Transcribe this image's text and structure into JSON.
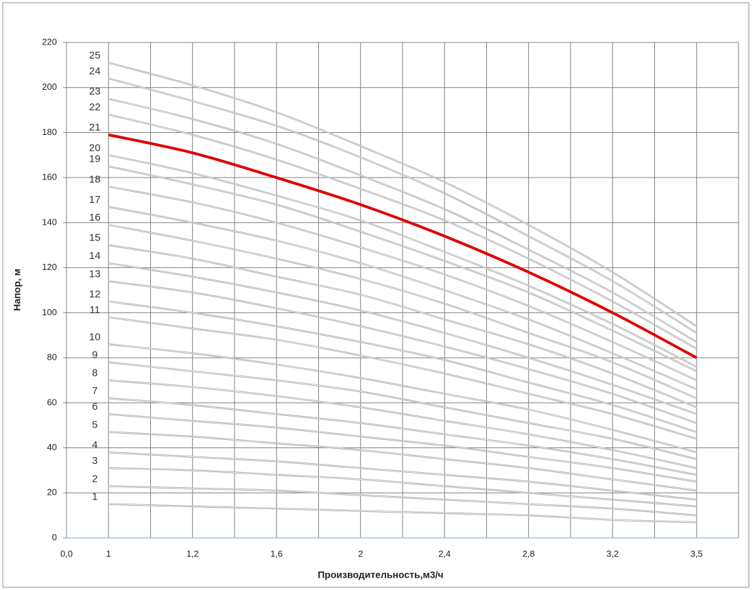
{
  "chart_data": {
    "type": "line",
    "x_label": "Производительность,м3/ч",
    "y_label": "Напор, м",
    "categories": [
      "0,0",
      "1",
      "1,2",
      "1,6",
      "2",
      "2,4",
      "2,8",
      "3,2",
      "3,5"
    ],
    "ylim": [
      0,
      220
    ],
    "yticks": [
      0,
      20,
      40,
      60,
      80,
      100,
      120,
      140,
      160,
      180,
      200,
      220
    ],
    "grid": true,
    "series": [
      {
        "name": "1",
        "color": "#a6a6a6",
        "values": [
          null,
          15,
          14,
          13,
          12,
          11,
          10,
          8,
          7
        ]
      },
      {
        "name": "2",
        "color": "#a6a6a6",
        "values": [
          null,
          23,
          22,
          21,
          19,
          17,
          15,
          13,
          10
        ]
      },
      {
        "name": "3",
        "color": "#a6a6a6",
        "values": [
          null,
          31,
          30,
          28,
          26,
          23,
          20,
          17,
          14
        ]
      },
      {
        "name": "4",
        "color": "#a6a6a6",
        "values": [
          null,
          38,
          36,
          34,
          31,
          28,
          25,
          21,
          17
        ]
      },
      {
        "name": "5",
        "color": "#a6a6a6",
        "values": [
          null,
          47,
          45,
          42,
          39,
          35,
          31,
          26,
          21
        ]
      },
      {
        "name": "6",
        "color": "#a6a6a6",
        "values": [
          null,
          55,
          52,
          49,
          45,
          41,
          36,
          31,
          25
        ]
      },
      {
        "name": "7",
        "color": "#a6a6a6",
        "values": [
          null,
          62,
          59,
          55,
          51,
          46,
          41,
          35,
          28
        ]
      },
      {
        "name": "8",
        "color": "#a6a6a6",
        "values": [
          null,
          70,
          67,
          63,
          58,
          52,
          46,
          39,
          31
        ]
      },
      {
        "name": "9",
        "color": "#a6a6a6",
        "values": [
          null,
          78,
          74,
          70,
          65,
          58,
          51,
          44,
          35
        ]
      },
      {
        "name": "10",
        "color": "#a6a6a6",
        "values": [
          null,
          86,
          82,
          77,
          71,
          64,
          57,
          48,
          38
        ]
      },
      {
        "name": "11",
        "color": "#a6a6a6",
        "values": [
          null,
          98,
          93,
          88,
          81,
          73,
          64,
          55,
          44
        ]
      },
      {
        "name": "12",
        "color": "#a6a6a6",
        "values": [
          null,
          105,
          100,
          94,
          87,
          79,
          69,
          59,
          47
        ]
      },
      {
        "name": "13",
        "color": "#a6a6a6",
        "values": [
          null,
          114,
          109,
          102,
          94,
          85,
          75,
          64,
          51
        ]
      },
      {
        "name": "14",
        "color": "#a6a6a6",
        "values": [
          null,
          122,
          116,
          109,
          101,
          91,
          80,
          68,
          55
        ]
      },
      {
        "name": "15",
        "color": "#a6a6a6",
        "values": [
          null,
          130,
          124,
          116,
          108,
          97,
          86,
          73,
          58
        ]
      },
      {
        "name": "16",
        "color": "#a6a6a6",
        "values": [
          null,
          139,
          132,
          124,
          115,
          104,
          91,
          78,
          62
        ]
      },
      {
        "name": "17",
        "color": "#a6a6a6",
        "values": [
          null,
          147,
          140,
          132,
          122,
          110,
          97,
          82,
          66
        ]
      },
      {
        "name": "18",
        "color": "#a6a6a6",
        "values": [
          null,
          156,
          149,
          140,
          129,
          117,
          103,
          87,
          70
        ]
      },
      {
        "name": "19",
        "color": "#a6a6a6",
        "values": [
          null,
          165,
          157,
          148,
          136,
          123,
          109,
          92,
          74
        ]
      },
      {
        "name": "20",
        "color": "#a6a6a6",
        "values": [
          null,
          170,
          162,
          152,
          141,
          127,
          112,
          95,
          76
        ]
      },
      {
        "name": "21",
        "color": "#e00000",
        "values": [
          null,
          179,
          171,
          160,
          148,
          134,
          118,
          100,
          80
        ]
      },
      {
        "name": "22",
        "color": "#a6a6a6",
        "values": [
          null,
          188,
          179,
          168,
          155,
          141,
          124,
          105,
          84
        ]
      },
      {
        "name": "23",
        "color": "#a6a6a6",
        "values": [
          null,
          195,
          186,
          175,
          161,
          146,
          128,
          109,
          87
        ]
      },
      {
        "name": "24",
        "color": "#a6a6a6",
        "values": [
          null,
          204,
          194,
          183,
          169,
          153,
          134,
          114,
          91
        ]
      },
      {
        "name": "25",
        "color": "#a6a6a6",
        "values": [
          null,
          211,
          201,
          189,
          174,
          158,
          139,
          118,
          94
        ]
      }
    ]
  }
}
